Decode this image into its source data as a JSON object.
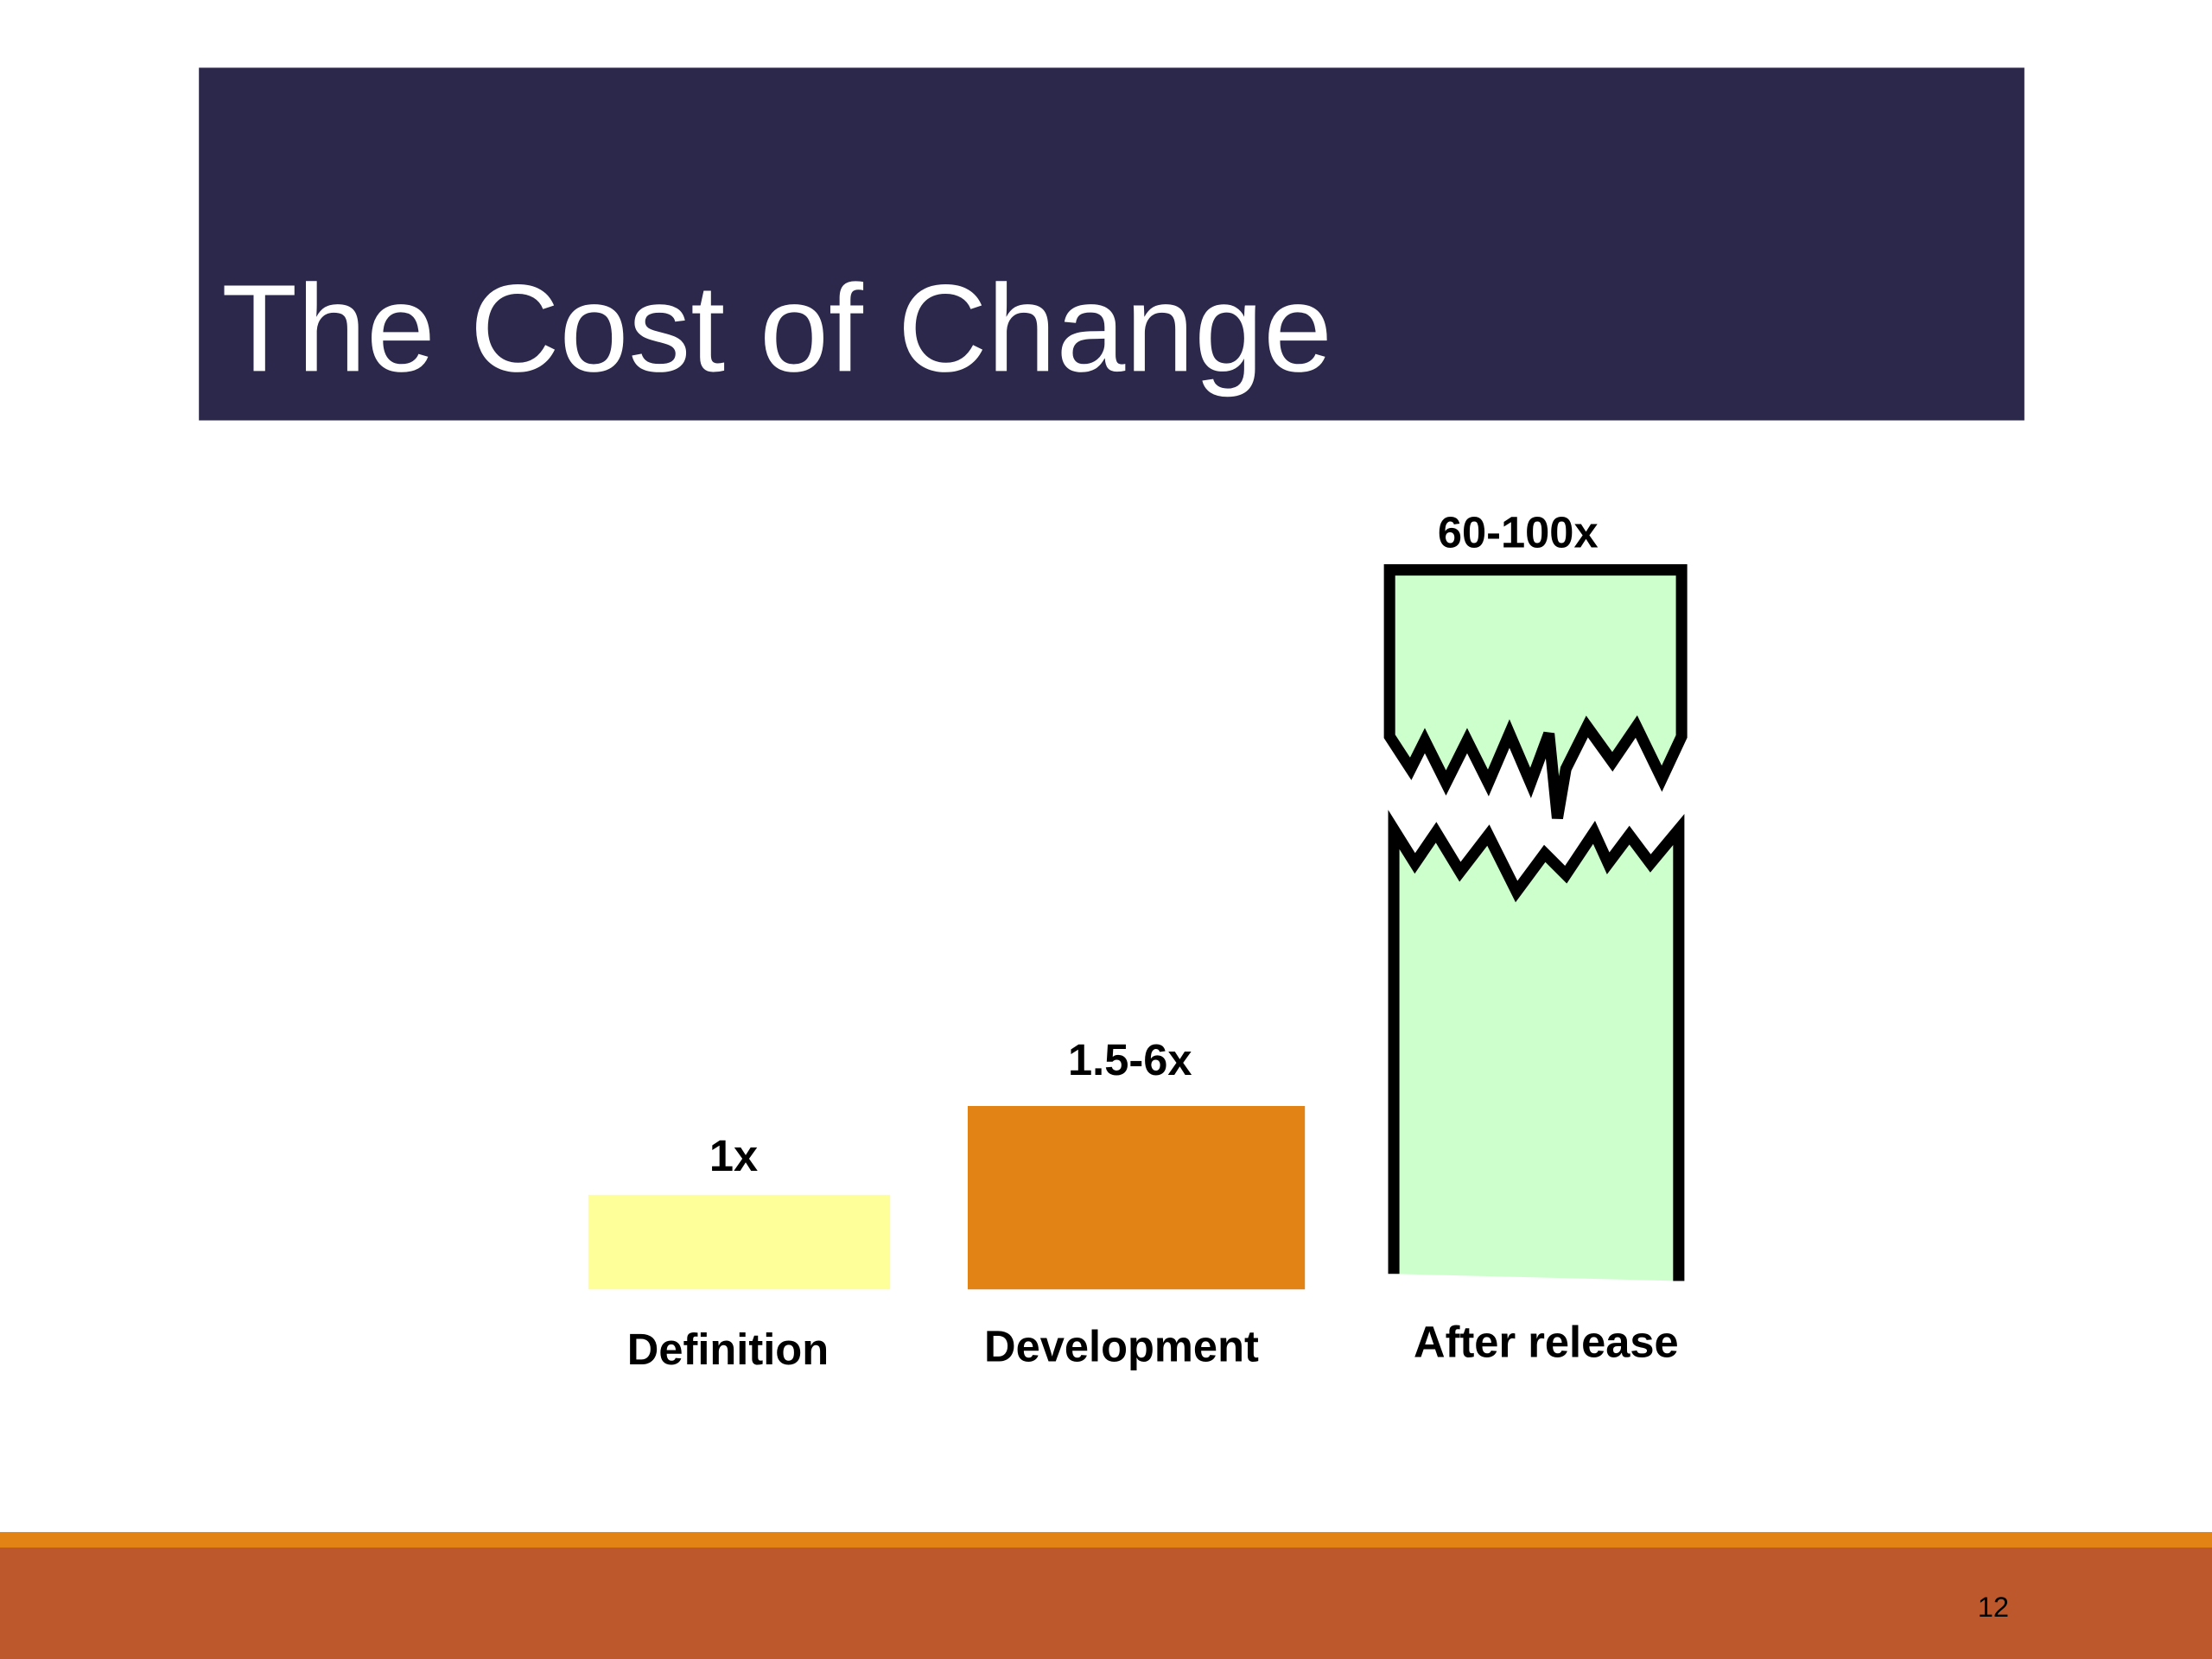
{
  "title": "The Cost of Change",
  "bars": [
    {
      "label": "1x",
      "category": "Definition"
    },
    {
      "label": "1.5-6x",
      "category": "Development"
    },
    {
      "label": "60-100x",
      "category": "After release"
    }
  ],
  "page_number": "12"
}
